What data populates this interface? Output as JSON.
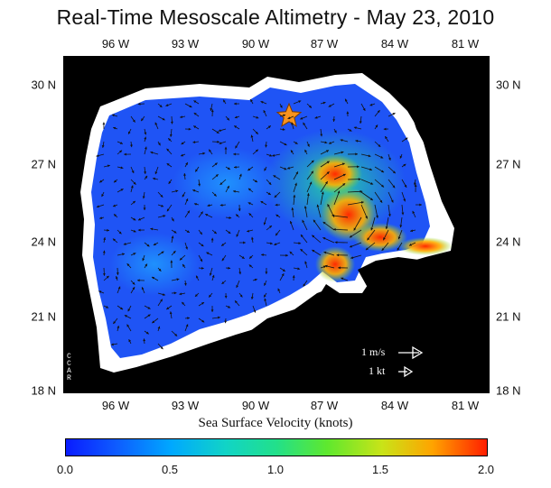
{
  "title": "Real-Time Mesoscale Altimetry - May 23, 2010",
  "axes": {
    "top_ticks": [
      "96 W",
      "93 W",
      "90 W",
      "87 W",
      "84 W",
      "81 W"
    ],
    "bottom_ticks": [
      "96 W",
      "93 W",
      "90 W",
      "87 W",
      "84 W",
      "81 W"
    ],
    "left_ticks": [
      "30 N",
      "27 N",
      "24 N",
      "21 N",
      "18 N"
    ],
    "right_ticks": [
      "30 N",
      "27 N",
      "24 N",
      "21 N",
      "18 N"
    ]
  },
  "legend": {
    "speed_ms": "1 m/s",
    "speed_kt": "1 kt"
  },
  "logo": {
    "letters": [
      "C",
      "C",
      "A",
      "R"
    ]
  },
  "colorbar": {
    "label": "Sea Surface Velocity (knots)",
    "ticks": [
      "0.0",
      "0.5",
      "1.0",
      "1.5",
      "2.0"
    ],
    "min": 0.0,
    "max": 2.0,
    "colormap": "jet"
  },
  "marker": {
    "type": "star",
    "color": "#f7931e",
    "label": ""
  },
  "colors": {
    "land": "#000000",
    "water_low": "#1a3cff",
    "water_high": "#ff2000",
    "coast_band": "#ffffff"
  }
}
